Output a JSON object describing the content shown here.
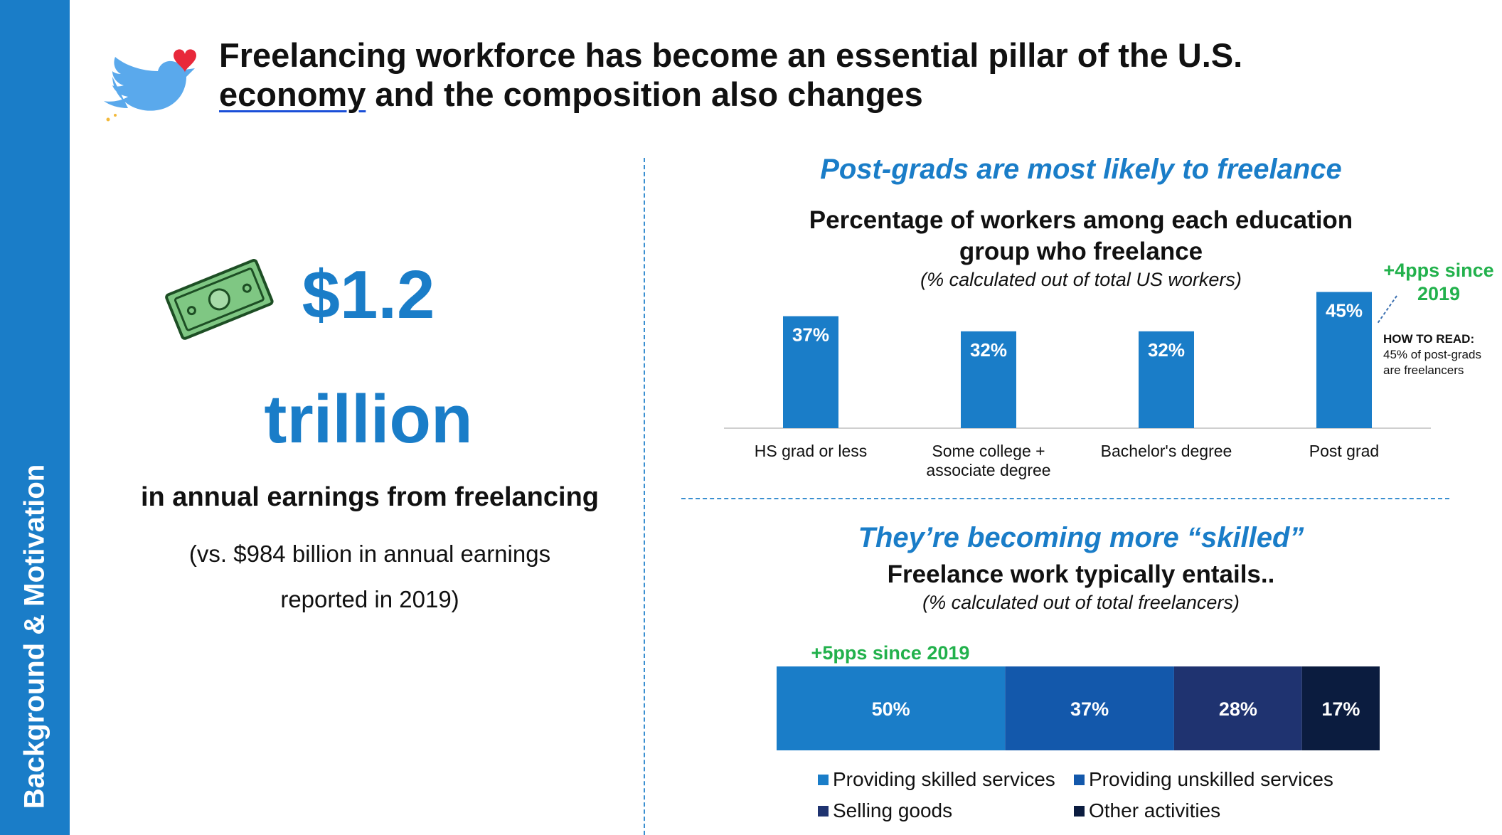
{
  "sidebar": {
    "label": "Background & Motivation",
    "color": "#1a7dc8"
  },
  "header": {
    "title_part1": "Freelancing workforce has become an essential pillar of the U.S.",
    "title_underlined": "economy",
    "title_part2": " and the composition also changes"
  },
  "left_panel": {
    "amount": "$1.2",
    "unit": "trillion",
    "description": "in annual earnings from freelancing",
    "comparison_line1": "(vs. $984 billion in annual earnings",
    "comparison_line2": "reported in 2019)"
  },
  "education_section": {
    "heading": "Post-grads are most likely to freelance",
    "chart_title_line1": "Percentage of workers among each education",
    "chart_title_line2": "group who freelance",
    "chart_subtitle": "(% calculated out of total US workers)",
    "callout_line1": "+4pps since",
    "callout_line2": "2019",
    "how_to_read_label": "HOW TO READ",
    "how_to_read_line1": "45% of post-grads",
    "how_to_read_line2": "are freelancers"
  },
  "skills_section": {
    "heading": "They’re becoming more “skilled”",
    "chart_title": "Freelance work typically entails..",
    "chart_subtitle": "(% calculated out of total freelancers)",
    "callout": "+5pps since 2019"
  },
  "colors": {
    "accent": "#1a7dc8",
    "green": "#22b14c"
  },
  "chart_data": [
    {
      "type": "bar",
      "categories": [
        [
          "HS grad or less"
        ],
        [
          "Some college +",
          "associate degree"
        ],
        [
          "Bachelor's degree"
        ],
        [
          "Post grad"
        ]
      ],
      "values": [
        37,
        32,
        32,
        45
      ],
      "value_labels": [
        "37%",
        "32%",
        "32%",
        "45%"
      ],
      "title": "Percentage of workers among each education group who freelance",
      "subtitle": "(% calculated out of total US workers)",
      "ylim": [
        0,
        47
      ],
      "color": "#1a7dc8",
      "grid": false
    },
    {
      "type": "bar",
      "orientation": "stacked-horizontal",
      "title": "Freelance work typically entails..",
      "subtitle": "(% calculated out of total freelancers)",
      "series": [
        {
          "name": "Providing skilled services",
          "value": 50,
          "label": "50%",
          "color": "#1a7dc8"
        },
        {
          "name": "Providing unskilled services",
          "value": 37,
          "label": "37%",
          "color": "#1358ab"
        },
        {
          "name": "Selling goods",
          "value": 28,
          "label": "28%",
          "color": "#1f3370"
        },
        {
          "name": "Other activities",
          "value": 17,
          "label": "17%",
          "color": "#0b1c3f"
        }
      ],
      "legend_position": "bottom"
    }
  ]
}
